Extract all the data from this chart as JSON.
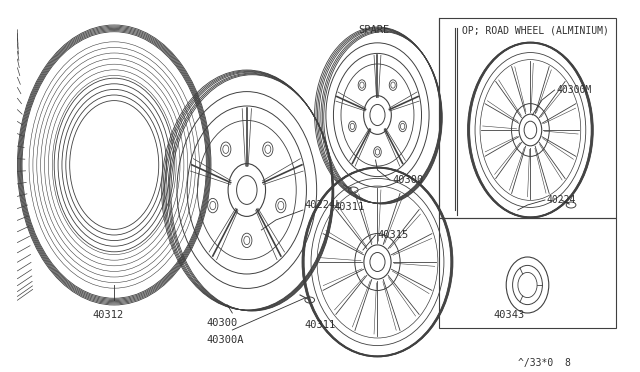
{
  "bg_color": "#ffffff",
  "line_color": "#404040",
  "text_color": "#303030",
  "footer_text": "^/33*0  8",
  "spare_label": "SPARE",
  "op_label": "OP; ROAD WHEEL (ALMINIUM)"
}
